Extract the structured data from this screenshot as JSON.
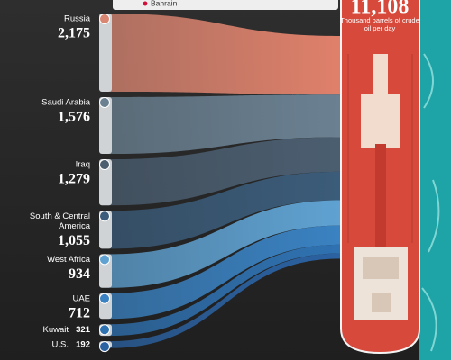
{
  "chart_data": {
    "type": "sankey",
    "total": {
      "value": 11108,
      "label": "11,108"
    },
    "subtitle": "Thousand barrels of crude oil per day",
    "categories": [
      "Bahrain",
      "Russia",
      "Saudi Arabia",
      "Iraq",
      "South & Central America",
      "West Africa",
      "UAE",
      "Kuwait",
      "U.S."
    ],
    "values": [
      null,
      2175,
      1576,
      1279,
      1055,
      934,
      712,
      321,
      192
    ],
    "value_labels": [
      null,
      "2,175",
      "1,576",
      "1,279",
      "1,055",
      "934",
      "712",
      "321",
      "192"
    ],
    "colors": [
      "#e8e8e8",
      "#d98672",
      "#6b8192",
      "#4b5e70",
      "#3b5c7a",
      "#5fa2d2",
      "#3a82c2",
      "#2f72b2",
      "#2b62a2"
    ]
  }
}
